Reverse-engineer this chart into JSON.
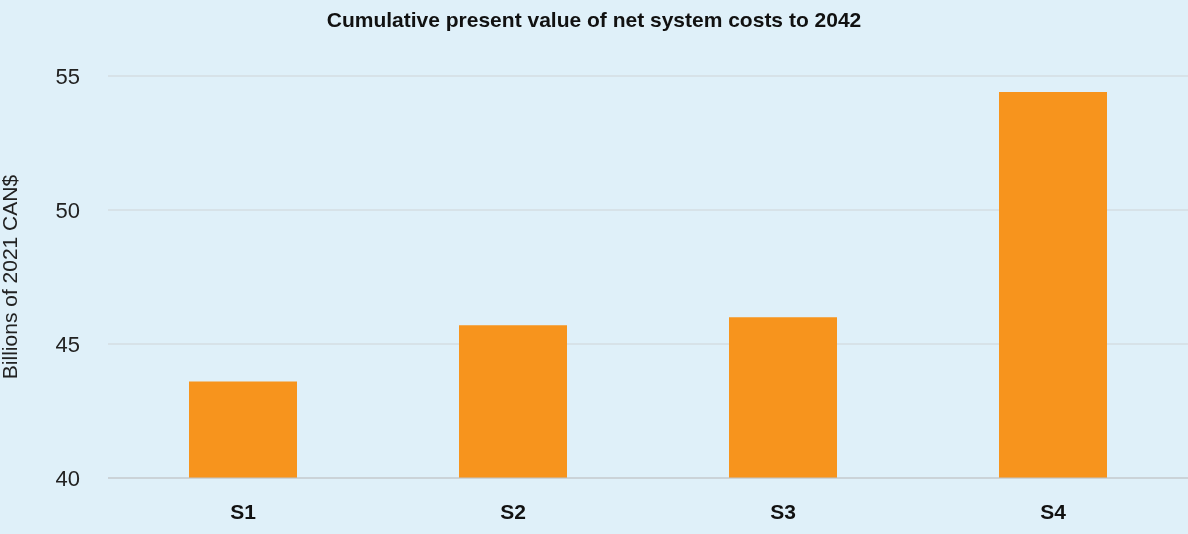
{
  "chart_data": {
    "type": "bar",
    "title": "Cumulative present value of net system costs to 2042",
    "ylabel": "Billions of 2021 CAN$",
    "categories": [
      "S1",
      "S2",
      "S3",
      "S4"
    ],
    "values": [
      43.6,
      45.7,
      46.0,
      54.4
    ],
    "color": "#f7941d",
    "ylim": [
      40,
      55
    ],
    "yticks": [
      40,
      45,
      50,
      55
    ],
    "grid": "y"
  }
}
